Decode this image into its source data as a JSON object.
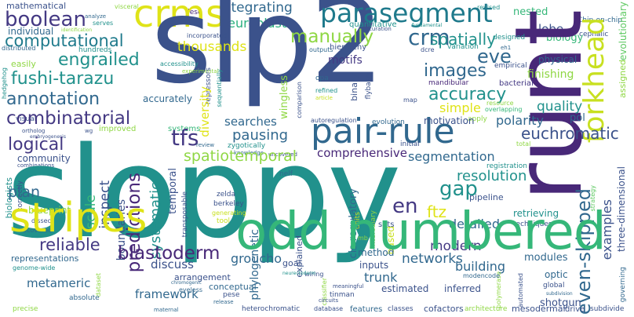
{
  "words": {
    "mathematical": "mathematical",
    "analyze": "analyze",
    "visceral": "visceral",
    "dese": "dese",
    "revised": "revised",
    "nested": "nested",
    "chip_on_chip": "Chip-on-chip",
    "cephalic": "cephalic",
    "evolutionary": "evolutionary",
    "boolean": "boolean",
    "crms": "crms",
    "slp2": "slp2",
    "neuroblasts": "neuroblasts",
    "integrating": "integrating",
    "parasegment": "parasegment",
    "crm": "crm",
    "runt": "runt",
    "forkhead": "forkhead",
    "lobe": "lobe",
    "biology": "biology",
    "individual": "individual",
    "identification": "identification",
    "serves": "serves",
    "curation": "curation",
    "fundamental": "fundamental",
    "quantitative": "quantitative",
    "designed": "designed",
    "distributed": "distributed",
    "hundreds": "hundreds",
    "computational": "computational",
    "incorporated": "incorporated",
    "manually": "manually",
    "outputs": "outputs",
    "dcre": "dcre",
    "variation": "variation",
    "eh1": "eh1",
    "hierarchy": "hierarchy",
    "spatially": "spatially",
    "easily": "easily",
    "thousands": "thousands",
    "assigned": "assigned",
    "engrailed": "engrailed",
    "accessibility": "accessibility",
    "motifs": "motifs",
    "eve": "eve",
    "empirical": "empirical",
    "physical": "physical",
    "hedgehog": "hedgehog",
    "fushi_tarazu": "fushi-tarazu",
    "experimental": "experimental",
    "repressors": "repressors",
    "sequentially": "sequentially",
    "images": "images",
    "opa": "opa",
    "flybase": "flybase",
    "mandibular": "mandibular",
    "bacterial": "bacterial",
    "finishing": "finishing",
    "annotation": "annotation",
    "accurately": "accurately",
    "visual": "visual",
    "diversity": "diversity",
    "wingless": "wingless",
    "comparison": "comparison",
    "binary": "binary",
    "refined": "refined",
    "article": "article",
    "accuracy": "accuracy",
    "map": "map",
    "quality": "quality",
    "combinatorial": "combinatorial",
    "wg": "wg",
    "ortholog": "ortholog",
    "improved": "improved",
    "systems": "systems",
    "searches": "searches",
    "apply": "apply",
    "polarity": "polarity",
    "pol": "pol",
    "simple": "simple",
    "resource": "resource",
    "overlapping": "overlapping",
    "pair_rule": "pair-rule",
    "embryogenesis": "embryogenesis",
    "logical": "logical",
    "tfs": "tfs",
    "autoregulation": "autoregulation",
    "evolution": "evolution",
    "motivation": "motivation",
    "euchromatic": "euchromatic",
    "pausing": "pausing",
    "review": "review",
    "zygotically": "zygotically",
    "knowledge": "knowledge",
    "uncovered": "uncovered",
    "initial": "initial",
    "total": "total",
    "community": "community",
    "combinations": "combinations",
    "spatiotemporal": "spatiotemporal",
    "comprehensive": "comprehensive",
    "segmentation": "segmentation",
    "biologists": "biologists",
    "correctly": "correctly",
    "sloppy": "sloppy",
    "blueprint": "blueprint",
    "dissect": "dissect",
    "recovered": "recovered",
    "inspect": "inspect",
    "predictions": "predictions",
    "systematic": "systematic",
    "temporal": "temporal",
    "nelf": "nelf",
    "boundaries": "boundaries",
    "three_dimensional": "three-dimensional",
    "resolution": "resolution",
    "registration": "registration",
    "strategy": "strategy",
    "scale": "scale",
    "gap": "gap",
    "ftz": "ftz",
    "transposable": "transposable",
    "zelda": "zelda",
    "berkeley": "berkeley",
    "cis_regulatory": "cis-regulatory",
    "pipeline": "pipeline",
    "plan": "plan",
    "en": "en",
    "even_skipped": "even-skipped",
    "examples": "examples",
    "phylogenetic": "phylogenetic",
    "detailed": "detailed",
    "generating": "generating",
    "units": "units",
    "intercalary": "intercalary",
    "retrieving": "retrieving",
    "sets": "sets",
    "reliable": "reliable",
    "tool": "tool",
    "blastoderm": "blastoderm",
    "explained": "explained",
    "modern": "modern",
    "techniques": "techniques",
    "representations": "representations",
    "genome_wide": "genome-wide",
    "mb": "mb",
    "based": "based",
    "method": "method",
    "networks": "networks",
    "modules": "modules",
    "goal": "goal",
    "inputs": "inputs",
    "building": "building",
    "dataset": "dataset",
    "discuss": "discuss",
    "groucho": "groucho",
    "wiring": "wiring",
    "arrangement": "arrangement",
    "neurectoderm": "neurectoderm",
    "trunk": "trunk",
    "conceptual": "conceptual",
    "classifier": "classifier",
    "polymerase": "polymerase",
    "modencode": "modencode",
    "automated": "automated",
    "optic": "optic",
    "eyeless": "eyeless",
    "chromogenic": "chromogenic",
    "estimated": "estimated",
    "inferred": "inferred",
    "tinman": "tinman",
    "meaningful": "meaningful",
    "global": "global",
    "subdivision": "subdivision",
    "absolute": "absolute",
    "circuits": "circuits",
    "pese": "pese",
    "release": "release",
    "shotgun": "shotgun",
    "governing": "governing",
    "odd": "odd",
    "numbered": "numbered",
    "stripes": "stripes",
    "framework": "framework",
    "metameric": "metameric",
    "precise": "precise",
    "heterochromatic": "heterochromatic",
    "database": "database",
    "features": "features",
    "classes": "classes",
    "cofactors": "cofactors",
    "architecture": "architecture",
    "mesodermal": "mesodermal",
    "drive": "drive",
    "subdivide": "subdivide",
    "maternal": "maternal"
  },
  "palette": {
    "yellow": "#dfe318",
    "dyellow": "#c8e020",
    "lgreen": "#8fd744",
    "green": "#5ec962",
    "mgreen": "#35b779",
    "teal": "#21918c",
    "dteal": "#1f7a8c",
    "blue": "#31688e",
    "navy": "#3b528b",
    "indigo": "#443983",
    "purple": "#482878",
    "dpurple": "#440154",
    "aqua": "#2ab07f",
    "sea": "#29af7f"
  }
}
